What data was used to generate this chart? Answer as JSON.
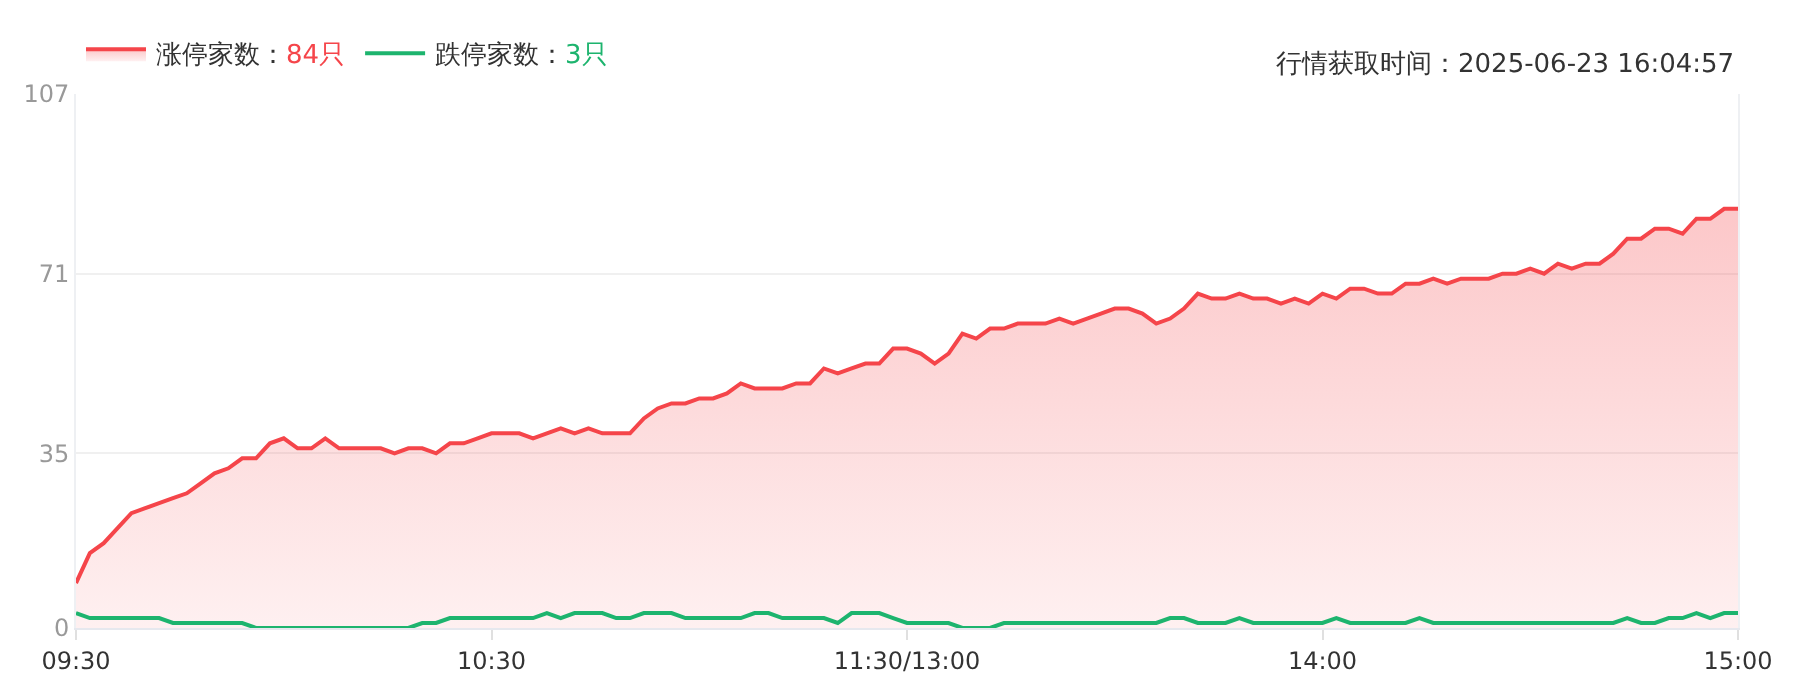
{
  "chart_data": {
    "type": "area",
    "annotations": [
      "行情获取时间：2025-06-23 16:04:57"
    ],
    "categories": [
      "09:30",
      null,
      null,
      null,
      null,
      null,
      null,
      null,
      null,
      null,
      null,
      null,
      null,
      null,
      null,
      null,
      null,
      null,
      null,
      null,
      null,
      null,
      null,
      null,
      null,
      null,
      null,
      null,
      null,
      null,
      "10:30",
      null,
      null,
      null,
      null,
      null,
      null,
      null,
      null,
      null,
      null,
      null,
      null,
      null,
      null,
      null,
      null,
      null,
      null,
      null,
      null,
      null,
      null,
      null,
      null,
      null,
      null,
      null,
      null,
      null,
      "11:30/13:00",
      null,
      null,
      null,
      null,
      null,
      null,
      null,
      null,
      null,
      null,
      null,
      null,
      null,
      null,
      null,
      null,
      null,
      null,
      null,
      null,
      null,
      null,
      null,
      null,
      null,
      null,
      null,
      null,
      null,
      "14:00",
      null,
      null,
      null,
      null,
      null,
      null,
      null,
      null,
      null,
      null,
      null,
      null,
      null,
      null,
      null,
      null,
      null,
      null,
      null,
      null,
      null,
      null,
      null,
      null,
      null,
      null,
      null,
      null,
      null,
      "15:00"
    ],
    "ylim": [
      0,
      107
    ],
    "yticks": [
      0,
      35,
      71,
      107
    ],
    "grid": "y",
    "legend": "top left",
    "marker": "none",
    "line_style": "solid",
    "series": [
      {
        "name": "涨停家数：84只",
        "color": "#f5454a",
        "values": [
          9,
          15,
          17,
          20,
          23,
          24,
          25,
          26,
          27,
          29,
          31,
          32,
          34,
          34,
          37,
          38,
          36,
          36,
          38,
          36,
          36,
          36,
          36,
          35,
          36,
          36,
          35,
          37,
          37,
          38,
          39,
          39,
          39,
          38,
          39,
          40,
          39,
          40,
          39,
          39,
          39,
          42,
          44,
          45,
          45,
          46,
          46,
          47,
          49,
          48,
          48,
          48,
          49,
          49,
          52,
          51,
          52,
          53,
          53,
          56,
          56,
          55,
          53,
          55,
          59,
          58,
          60,
          60,
          61,
          61,
          61,
          62,
          61,
          62,
          63,
          64,
          64,
          63,
          61,
          62,
          64,
          67,
          66,
          66,
          67,
          66,
          66,
          65,
          66,
          65,
          67,
          66,
          68,
          68,
          67,
          67,
          69,
          69,
          70,
          69,
          70,
          70,
          70,
          71,
          71,
          72,
          71,
          73,
          72,
          73,
          73,
          75,
          78,
          78,
          80,
          80,
          79,
          82,
          82,
          84,
          84
        ]
      },
      {
        "name": "跌停家数：3只",
        "type": "line",
        "color": "#1db46e",
        "values": [
          3,
          2,
          2,
          2,
          2,
          2,
          2,
          1,
          1,
          1,
          1,
          1,
          1,
          0,
          0,
          0,
          0,
          0,
          0,
          0,
          0,
          0,
          0,
          0,
          0,
          1,
          1,
          2,
          2,
          2,
          2,
          2,
          2,
          2,
          3,
          2,
          3,
          3,
          3,
          2,
          2,
          3,
          3,
          3,
          2,
          2,
          2,
          2,
          2,
          3,
          3,
          2,
          2,
          2,
          2,
          1,
          3,
          3,
          3,
          2,
          1,
          1,
          1,
          1,
          0,
          0,
          0,
          1,
          1,
          1,
          1,
          1,
          1,
          1,
          1,
          1,
          1,
          1,
          1,
          2,
          2,
          1,
          1,
          1,
          2,
          1,
          1,
          1,
          1,
          1,
          1,
          2,
          1,
          1,
          1,
          1,
          1,
          2,
          1,
          1,
          1,
          1,
          1,
          1,
          1,
          1,
          1,
          1,
          1,
          1,
          1,
          1,
          2,
          1,
          1,
          2,
          2,
          3,
          2,
          3,
          3
        ]
      }
    ]
  }
}
